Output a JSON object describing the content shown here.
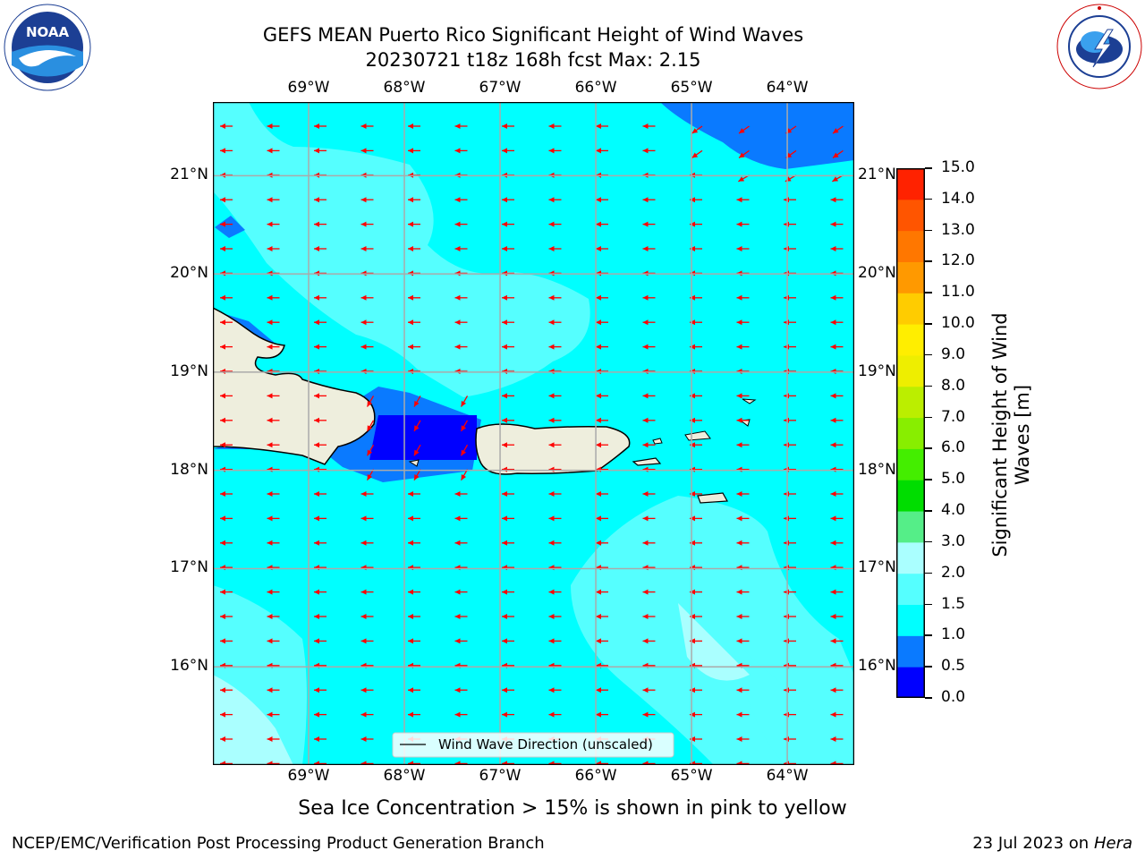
{
  "header": {
    "title_line1": "GEFS MEAN Puerto Rico Significant Height of Wind Waves",
    "title_line2": "20230721 t18z 168h fcst   Max: 2.15"
  },
  "logos": {
    "left": {
      "name": "noaa-logo",
      "text": "NOAA",
      "ring_text": "NATIONAL OCEANIC AND ATMOSPHERIC ADMINISTRATION · U.S. DEPARTMENT OF COMMERCE"
    },
    "right": {
      "name": "nws-logo",
      "ring_text": "NATIONAL WEATHER SERVICE"
    }
  },
  "map": {
    "lon_labels": [
      "69°W",
      "68°W",
      "67°W",
      "66°W",
      "65°W",
      "64°W"
    ],
    "lat_labels": [
      "21°N",
      "20°N",
      "19°N",
      "18°N",
      "17°N",
      "16°N"
    ],
    "lon_range": [
      -70.0,
      -63.3
    ],
    "lat_range": [
      15.0,
      21.75
    ],
    "legend_label": "Wind Wave Direction (unscaled)",
    "arrow_color": "#ff0000",
    "ocean_base_color": "#00ffff",
    "land_color": "#eeeedd",
    "ice_note_color": "#ffffff"
  },
  "colorbar": {
    "label_line1": "Significant Height of Wind",
    "label_line2": "Waves [m]",
    "ticks": [
      "0.0",
      "0.5",
      "1.0",
      "1.5",
      "2.0",
      "3.0",
      "4.0",
      "5.0",
      "6.0",
      "7.0",
      "8.0",
      "9.0",
      "10.0",
      "11.0",
      "12.0",
      "13.0",
      "14.0",
      "15.0"
    ],
    "colors": [
      "#0000ff",
      "#0a7aff",
      "#00ffff",
      "#55ffff",
      "#aaffff",
      "#55ee88",
      "#00dd00",
      "#44ee00",
      "#88ee00",
      "#bbee00",
      "#eeee00",
      "#ffee00",
      "#ffcc00",
      "#ff9900",
      "#ff7700",
      "#ff5500",
      "#ff2200"
    ]
  },
  "notes": {
    "sea_ice": "Sea Ice Concentration > 15% is shown in pink to yellow"
  },
  "footer": {
    "left": "NCEP/EMC/Verification Post Processing Product Generation Branch",
    "right_date": "23 Jul 2023 on ",
    "right_host": "Hera"
  }
}
